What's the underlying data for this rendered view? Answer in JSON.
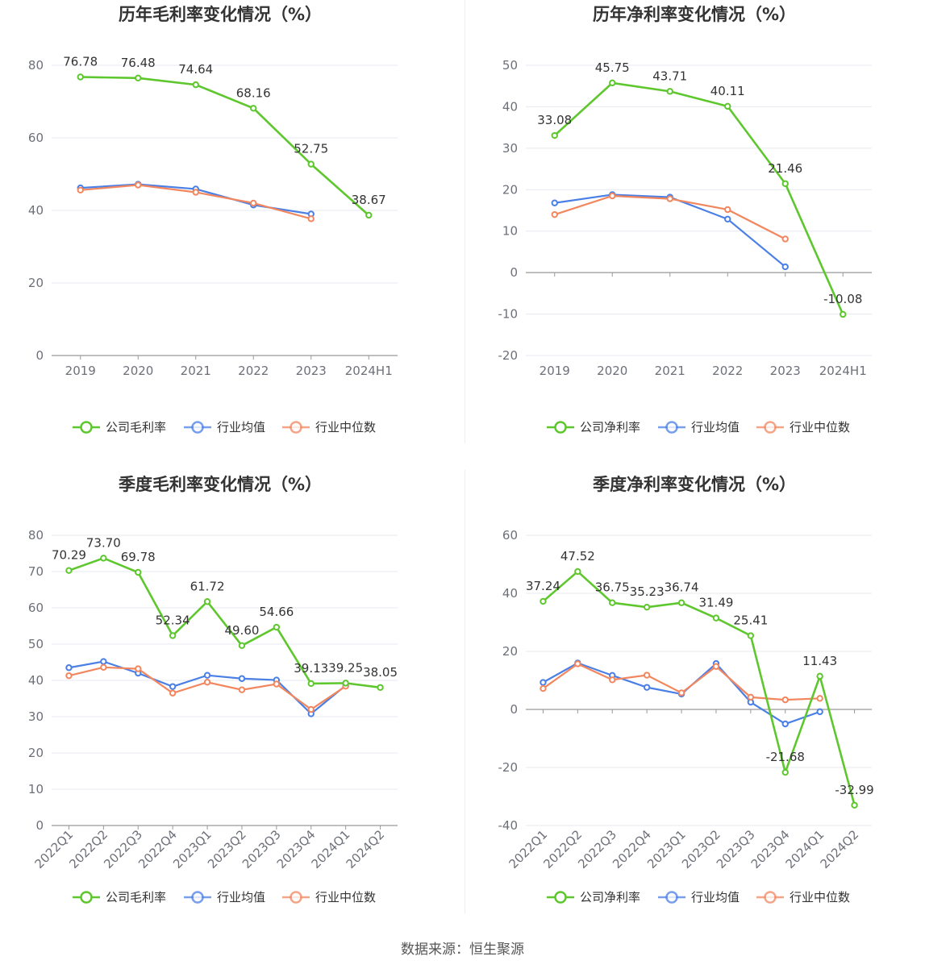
{
  "colors": {
    "company": "#5ec72e",
    "avg": "#4a7fe6",
    "median": "#f2875f",
    "grid": "#e6e8ef",
    "axis": "#999999"
  },
  "legend_icon": "circle-line-icon",
  "source_text": "数据来源：恒生聚源",
  "chart_data": [
    {
      "type": "line",
      "title": "历年毛利率变化情况（%）",
      "categories": [
        "2019",
        "2020",
        "2021",
        "2022",
        "2023",
        "2024H1"
      ],
      "ylim": [
        0,
        80
      ],
      "yticks": [
        0,
        20,
        40,
        60,
        80
      ],
      "rotate_labels": false,
      "series": [
        {
          "name": "公司毛利率",
          "key": "company",
          "values": [
            76.78,
            76.48,
            74.64,
            68.16,
            52.75,
            38.67
          ],
          "labels": [
            "76.78",
            "76.48",
            "74.64",
            "68.16",
            "52.75",
            "38.67"
          ]
        },
        {
          "name": "行业均值",
          "key": "avg",
          "values": [
            46.2,
            47.2,
            45.9,
            41.5,
            39.0,
            null
          ]
        },
        {
          "name": "行业中位数",
          "key": "median",
          "values": [
            45.6,
            47.0,
            45.0,
            42.0,
            37.7,
            null
          ]
        }
      ]
    },
    {
      "type": "line",
      "title": "历年净利率变化情况（%）",
      "categories": [
        "2019",
        "2020",
        "2021",
        "2022",
        "2023",
        "2024H1"
      ],
      "ylim": [
        -20,
        50
      ],
      "yticks": [
        -20,
        -10,
        0,
        10,
        20,
        30,
        40,
        50
      ],
      "rotate_labels": false,
      "series": [
        {
          "name": "公司净利率",
          "key": "company",
          "values": [
            33.08,
            45.75,
            43.71,
            40.11,
            21.46,
            -10.08
          ],
          "labels": [
            "33.08",
            "45.75",
            "43.71",
            "40.11",
            "21.46",
            "-10.08"
          ]
        },
        {
          "name": "行业均值",
          "key": "avg",
          "values": [
            16.8,
            18.8,
            18.2,
            12.9,
            1.4,
            null
          ]
        },
        {
          "name": "行业中位数",
          "key": "median",
          "values": [
            14.0,
            18.5,
            17.8,
            15.2,
            8.1,
            null
          ]
        }
      ]
    },
    {
      "type": "line",
      "title": "季度毛利率变化情况（%）",
      "categories": [
        "2022Q1",
        "2022Q2",
        "2022Q3",
        "2022Q4",
        "2023Q1",
        "2023Q2",
        "2023Q3",
        "2023Q4",
        "2024Q1",
        "2024Q2"
      ],
      "ylim": [
        0,
        80
      ],
      "yticks": [
        0,
        10,
        20,
        30,
        40,
        50,
        60,
        70,
        80
      ],
      "rotate_labels": true,
      "series": [
        {
          "name": "公司毛利率",
          "key": "company",
          "values": [
            70.29,
            73.7,
            69.78,
            52.34,
            61.72,
            49.6,
            54.66,
            39.13,
            39.25,
            38.05
          ],
          "labels": [
            "70.29",
            "73.70",
            "69.78",
            "52.34",
            "61.72",
            "49.60",
            "54.66",
            "39.13",
            "39.25",
            "38.05"
          ]
        },
        {
          "name": "行业均值",
          "key": "avg",
          "values": [
            43.5,
            45.2,
            42.0,
            38.3,
            41.4,
            40.5,
            40.1,
            30.8,
            38.6,
            null
          ]
        },
        {
          "name": "行业中位数",
          "key": "median",
          "values": [
            41.3,
            43.6,
            43.2,
            36.5,
            39.5,
            37.4,
            39.0,
            32.0,
            38.4,
            null
          ]
        }
      ]
    },
    {
      "type": "line",
      "title": "季度净利率变化情况（%）",
      "categories": [
        "2022Q1",
        "2022Q2",
        "2022Q3",
        "2022Q4",
        "2023Q1",
        "2023Q2",
        "2023Q3",
        "2023Q4",
        "2024Q1",
        "2024Q2"
      ],
      "ylim": [
        -40,
        60
      ],
      "yticks": [
        -40,
        -20,
        0,
        20,
        40,
        60
      ],
      "rotate_labels": true,
      "series": [
        {
          "name": "公司净利率",
          "key": "company",
          "values": [
            37.24,
            47.52,
            36.75,
            35.23,
            36.74,
            31.49,
            25.41,
            -21.68,
            11.43,
            -32.99
          ],
          "labels": [
            "37.24",
            "47.52",
            "36.75",
            "35.23",
            "36.74",
            "31.49",
            "25.41",
            "-21.68",
            "11.43",
            "-32.99"
          ]
        },
        {
          "name": "行业均值",
          "key": "avg",
          "values": [
            9.3,
            16.0,
            11.7,
            7.6,
            5.3,
            15.8,
            2.5,
            -5.0,
            -0.8,
            null
          ]
        },
        {
          "name": "行业中位数",
          "key": "median",
          "values": [
            7.2,
            15.7,
            10.2,
            11.8,
            5.7,
            14.8,
            4.2,
            3.3,
            3.8,
            null
          ]
        }
      ]
    }
  ]
}
